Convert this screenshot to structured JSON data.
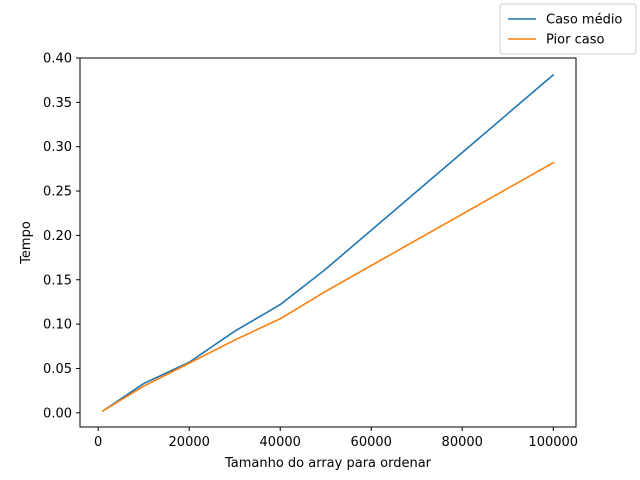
{
  "chart_data": {
    "type": "line",
    "title": "",
    "xlabel": "Tamanho do array para ordenar",
    "ylabel": "Tempo",
    "xlim": [
      -4000,
      105000
    ],
    "ylim": [
      -0.016,
      0.4
    ],
    "xticks": [
      0,
      20000,
      40000,
      60000,
      80000,
      100000
    ],
    "yticks": [
      0.0,
      0.05,
      0.1,
      0.15,
      0.2,
      0.25,
      0.3,
      0.35,
      0.4
    ],
    "xtick_labels": [
      "0",
      "20000",
      "40000",
      "60000",
      "80000",
      "100000"
    ],
    "ytick_labels": [
      "0.00",
      "0.05",
      "0.10",
      "0.15",
      "0.20",
      "0.25",
      "0.30",
      "0.35",
      "0.40"
    ],
    "grid": false,
    "legend_position": "top-right",
    "x": [
      1000,
      10000,
      20000,
      30000,
      40000,
      50000,
      100000
    ],
    "series": [
      {
        "name": "Caso médio",
        "color": "#1f77b4",
        "values": [
          0.002,
          0.033,
          0.057,
          0.092,
          0.122,
          0.162,
          0.381
        ]
      },
      {
        "name": "Pior caso",
        "color": "#ff7f0e",
        "values": [
          0.002,
          0.03,
          0.056,
          0.082,
          0.106,
          0.137,
          0.282
        ]
      }
    ]
  }
}
